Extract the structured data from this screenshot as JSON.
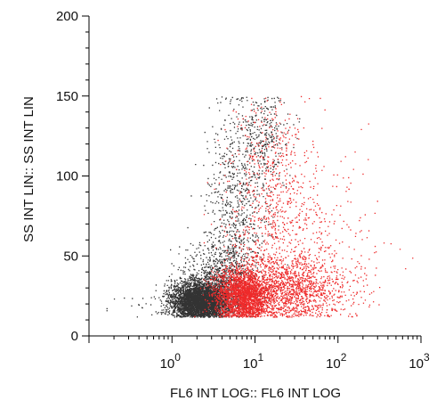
{
  "chart_data": {
    "type": "scatter",
    "title": "",
    "xlabel": "FL6 INT LOG:: FL6 INT LOG",
    "ylabel": "SS INT LIN:: SS INT LIN",
    "x_scale": "log",
    "x_range": [
      0.1,
      1000
    ],
    "y_range": [
      0,
      200
    ],
    "x_ticks": [
      {
        "value": 1,
        "base": "10",
        "exp": "0"
      },
      {
        "value": 10,
        "base": "10",
        "exp": "1"
      },
      {
        "value": 100,
        "base": "10",
        "exp": "2"
      },
      {
        "value": 1000,
        "base": "10",
        "exp": "3"
      }
    ],
    "y_ticks": [
      {
        "value": 0,
        "label": "0"
      },
      {
        "value": 50,
        "label": "50"
      },
      {
        "value": 100,
        "label": "100"
      },
      {
        "value": 150,
        "label": "150"
      },
      {
        "value": 200,
        "label": "200"
      }
    ],
    "grid": false,
    "legend": "none",
    "series": [
      {
        "color": "#333333",
        "clusters": [
          {
            "n": 6500,
            "x_center": 2.2,
            "x_log_sd": 0.17,
            "y_mean": 22,
            "y_sd": 6
          },
          {
            "n": 900,
            "x_center": 3.5,
            "x_log_sd": 0.22,
            "y_mean": 35,
            "y_sd": 12
          },
          {
            "n": 700,
            "x_center": 6,
            "x_log_sd": 0.18,
            "y_mean": 80,
            "y_sd": 30
          },
          {
            "n": 300,
            "x_center": 12,
            "x_log_sd": 0.15,
            "y_mean": 125,
            "y_sd": 15
          },
          {
            "n": 120,
            "x_center": 1.5,
            "x_log_sd": 0.35,
            "y_mean": 22,
            "y_sd": 5
          }
        ]
      },
      {
        "color": "#ee2a2a",
        "clusters": [
          {
            "n": 2300,
            "x_center": 7,
            "x_log_sd": 0.17,
            "y_mean": 26,
            "y_sd": 8
          },
          {
            "n": 1400,
            "x_center": 25,
            "x_log_sd": 0.35,
            "y_mean": 30,
            "y_sd": 10
          },
          {
            "n": 600,
            "x_center": 15,
            "x_log_sd": 0.3,
            "y_mean": 70,
            "y_sd": 30
          },
          {
            "n": 280,
            "x_center": 60,
            "x_log_sd": 0.4,
            "y_mean": 60,
            "y_sd": 30
          },
          {
            "n": 150,
            "x_center": 15,
            "x_log_sd": 0.2,
            "y_mean": 120,
            "y_sd": 18
          }
        ]
      }
    ]
  }
}
